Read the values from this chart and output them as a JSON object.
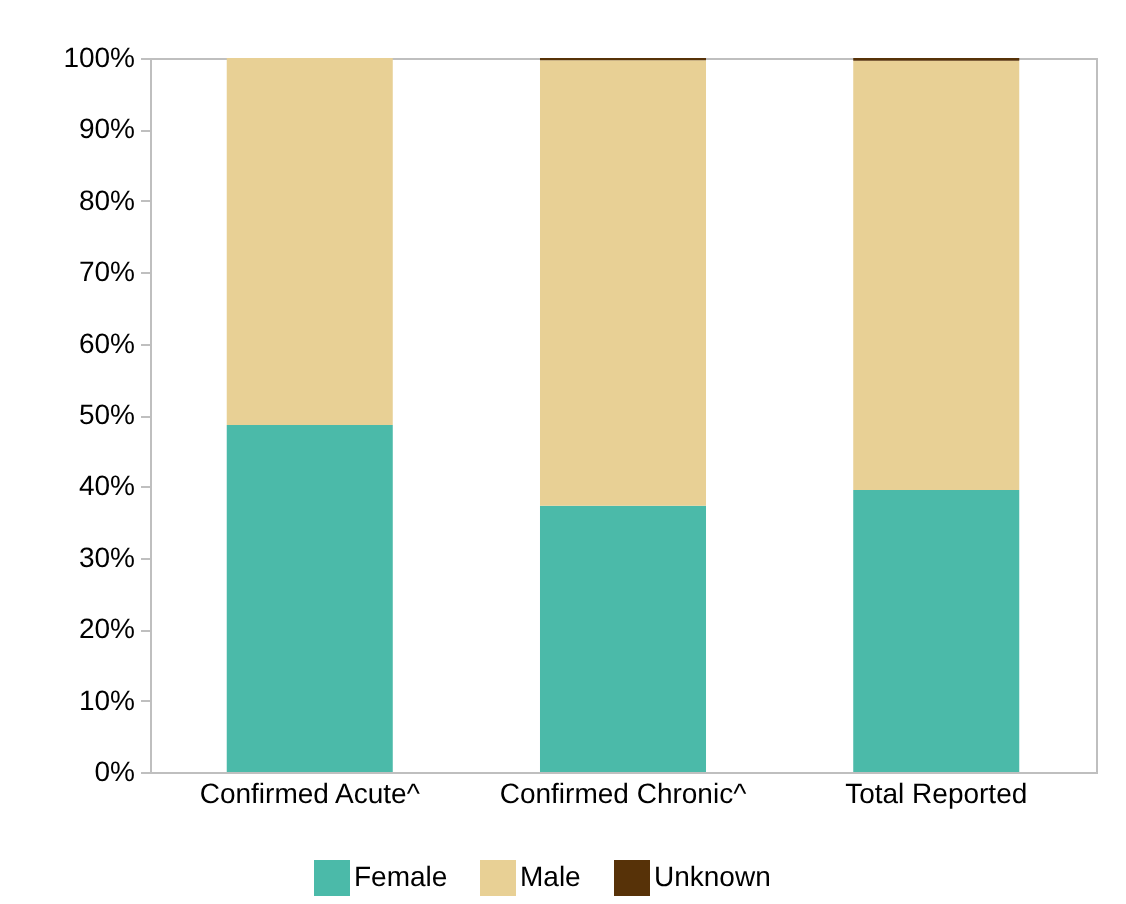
{
  "chart_data": {
    "type": "bar",
    "stacked": true,
    "categories": [
      "Confirmed Acute^",
      "Confirmed Chronic^",
      "Total Reported"
    ],
    "series": [
      {
        "name": "Female",
        "color": "#4bbaa9",
        "values": [
          48.6,
          37.3,
          39.5
        ]
      },
      {
        "name": "Male",
        "color": "#e8d095",
        "values": [
          51.4,
          62.4,
          60.1
        ]
      },
      {
        "name": "Unknown",
        "color": "#573208",
        "values": [
          0,
          0.3,
          0.4
        ]
      }
    ],
    "ylim": [
      0,
      100
    ],
    "yticks": [
      {
        "value": 0,
        "label": "0%"
      },
      {
        "value": 10,
        "label": "10%"
      },
      {
        "value": 20,
        "label": "20%"
      },
      {
        "value": 30,
        "label": "30%"
      },
      {
        "value": 40,
        "label": "40%"
      },
      {
        "value": 50,
        "label": "50%"
      },
      {
        "value": 60,
        "label": "60%"
      },
      {
        "value": 70,
        "label": "70%"
      },
      {
        "value": 80,
        "label": "80%"
      },
      {
        "value": 90,
        "label": "90%"
      },
      {
        "value": 100,
        "label": "100%"
      }
    ],
    "grid": false,
    "legend": "bottom"
  }
}
